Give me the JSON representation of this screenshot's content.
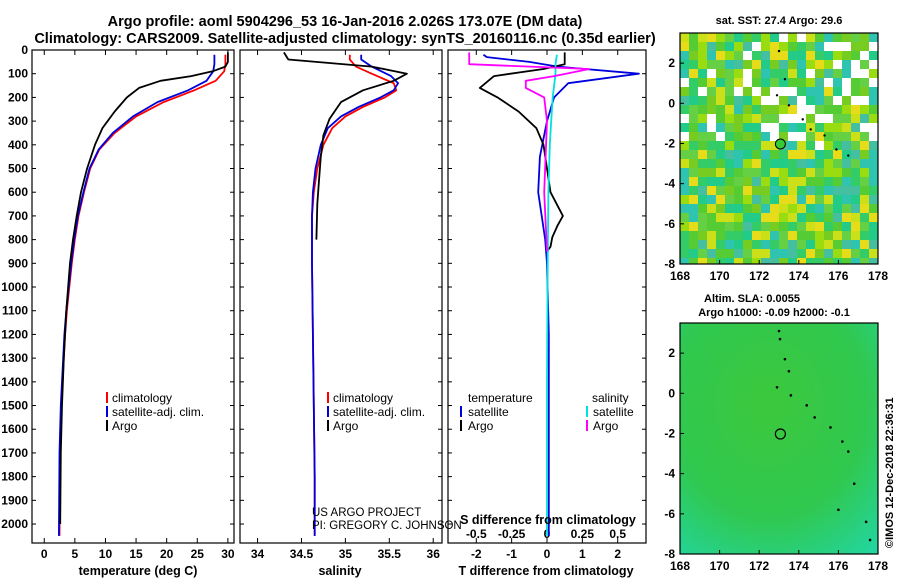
{
  "header": {
    "line1": "Argo profile: aoml 5904296_53 16-Jan-2016 2.026S 173.07E (DM data)",
    "line2": "Climatology: CARS2009. Satellite-adjusted climatology: synTS_20160116.nc (0.35d earlier)"
  },
  "colors": {
    "climatology": "#ff0000",
    "satellite": "#0000dd",
    "argo": "#000000",
    "sat_salinity": "#00e0e0",
    "argo_salinity": "#ff00ff"
  },
  "credit": {
    "line1": "US ARGO PROJECT",
    "line2": "PI: GREGORY C. JOHNSON"
  },
  "timestamp": "©IMOS 12-Dec-2018 22:36:31",
  "chart_data": [
    {
      "id": "temperature",
      "type": "line",
      "xlabel": "temperature (deg C)",
      "ylabel": "",
      "xlim": [
        -2,
        31
      ],
      "ylim": [
        2080,
        0
      ],
      "xticks": [
        0,
        5,
        10,
        15,
        20,
        25,
        30
      ],
      "yticks": [
        0,
        100,
        200,
        300,
        400,
        500,
        600,
        700,
        800,
        900,
        1000,
        1100,
        1200,
        1300,
        1400,
        1500,
        1600,
        1700,
        1800,
        1900,
        2000
      ],
      "legend": [
        "climatology",
        "satellite-adj. clim.",
        "Argo"
      ],
      "series": [
        {
          "name": "climatology",
          "color": "#ff0000",
          "x": [
            29.6,
            29.6,
            29.4,
            28.0,
            24.5,
            19.5,
            15.0,
            11.5,
            9.0,
            7.5,
            6.5,
            5.6,
            5.0,
            4.5,
            4.1,
            3.7,
            3.4,
            3.2,
            3.0,
            2.8,
            2.6,
            2.5
          ],
          "y": [
            20,
            60,
            90,
            130,
            170,
            220,
            280,
            350,
            420,
            500,
            600,
            700,
            800,
            900,
            1000,
            1100,
            1200,
            1300,
            1400,
            1500,
            1700,
            2050
          ]
        },
        {
          "name": "satellite-adj. clim.",
          "color": "#0000dd",
          "x": [
            27.8,
            27.8,
            27.6,
            26.5,
            23.5,
            18.5,
            14.5,
            11.2,
            8.9,
            7.4,
            6.4,
            5.5,
            4.9,
            4.4,
            4.0,
            3.6,
            3.3,
            3.1,
            2.9,
            2.7,
            2.5,
            2.4
          ],
          "y": [
            20,
            60,
            90,
            130,
            170,
            220,
            280,
            350,
            420,
            500,
            600,
            700,
            800,
            900,
            1000,
            1100,
            1200,
            1300,
            1400,
            1500,
            1700,
            2050
          ]
        },
        {
          "name": "Argo",
          "color": "#000000",
          "x": [
            30.0,
            30.0,
            29.6,
            27.5,
            24.0,
            19.0,
            15.5,
            13.5,
            11.5,
            9.5,
            8.3,
            7.0,
            6.0,
            5.3,
            4.7,
            4.2,
            3.6,
            3.2,
            2.9,
            2.7,
            2.6
          ],
          "y": [
            10,
            50,
            70,
            90,
            110,
            130,
            160,
            200,
            260,
            330,
            400,
            500,
            600,
            700,
            800,
            900,
            1100,
            1300,
            1500,
            1700,
            2000
          ]
        }
      ]
    },
    {
      "id": "salinity",
      "type": "line",
      "xlabel": "salinity",
      "ylabel": "",
      "xlim": [
        33.8,
        36.1
      ],
      "ylim": [
        2080,
        0
      ],
      "xticks": [
        34,
        34.5,
        35,
        35.5,
        36
      ],
      "legend": [
        "climatology",
        "satellite-adj. clim.",
        "Argo"
      ],
      "series": [
        {
          "name": "climatology",
          "color": "#ff0000",
          "x": [
            35.05,
            35.05,
            35.12,
            35.3,
            35.55,
            35.58,
            35.45,
            35.2,
            35.0,
            34.85,
            34.75,
            34.68,
            34.64,
            34.62,
            34.62,
            34.63,
            34.64,
            34.65,
            34.65
          ],
          "y": [
            20,
            40,
            70,
            100,
            140,
            170,
            200,
            240,
            280,
            330,
            400,
            500,
            600,
            700,
            900,
            1200,
            1500,
            1800,
            2050
          ]
        },
        {
          "name": "satellite-adj. clim.",
          "color": "#0000dd",
          "x": [
            35.18,
            35.18,
            35.3,
            35.52,
            35.6,
            35.55,
            35.4,
            35.15,
            34.95,
            34.8,
            34.72,
            34.66,
            34.63,
            34.62,
            34.62,
            34.63,
            34.64,
            34.65,
            34.65
          ],
          "y": [
            20,
            40,
            70,
            110,
            140,
            170,
            200,
            240,
            280,
            330,
            400,
            500,
            600,
            700,
            900,
            1200,
            1500,
            1800,
            2050
          ]
        },
        {
          "name": "Argo",
          "color": "#000000",
          "x": [
            34.3,
            34.35,
            35.3,
            35.7,
            35.55,
            35.2,
            34.95,
            34.82,
            34.75,
            34.72,
            34.7,
            34.68,
            34.67
          ],
          "y": [
            10,
            40,
            70,
            100,
            130,
            170,
            220,
            290,
            360,
            450,
            550,
            650,
            800
          ]
        }
      ]
    },
    {
      "id": "difference",
      "type": "line",
      "xlabel": "T difference from climatology",
      "xlabel_top": "S difference from climatology",
      "xlim": [
        -2.8,
        2.8
      ],
      "ylim": [
        2080,
        0
      ],
      "xticks": [
        -2,
        -1,
        0,
        1,
        2
      ],
      "xticks_s": [
        -0.5,
        -0.25,
        0,
        0.25,
        0.5
      ],
      "legend_left_title": "temperature",
      "legend_right_title": "salinity",
      "legend_left": [
        "satellite",
        "Argo"
      ],
      "legend_right": [
        "satellite",
        "Argo"
      ],
      "series": [
        {
          "name": "T satellite",
          "color": "#0000dd",
          "x": [
            -1.8,
            -1.7,
            -0.5,
            0.3,
            2.6,
            0.6,
            0.2,
            0.0,
            -0.2,
            -0.25,
            -0.15,
            -0.05,
            0.0,
            0.05,
            0.05,
            0.05,
            0.05
          ],
          "y": [
            20,
            30,
            50,
            70,
            100,
            140,
            200,
            300,
            450,
            600,
            700,
            800,
            900,
            1200,
            1500,
            1800,
            2050
          ]
        },
        {
          "name": "T Argo",
          "color": "#000000",
          "x": [
            0.5,
            0.5,
            -0.1,
            -1.5,
            -1.9,
            -1.4,
            -0.8,
            -0.3,
            -0.1,
            0.0,
            0.1,
            0.45,
            0.3,
            0.15,
            0.1,
            0.0
          ],
          "y": [
            10,
            60,
            80,
            110,
            160,
            200,
            260,
            330,
            400,
            500,
            600,
            700,
            740,
            790,
            830,
            850
          ]
        },
        {
          "name": "S satellite",
          "color": "#00e0e0",
          "x": [
            0.07,
            0.06,
            0.06,
            0.05,
            0.04,
            0.03,
            0.02,
            0.01,
            0.005,
            0.0,
            0.0
          ],
          "y": [
            20,
            60,
            100,
            150,
            200,
            300,
            400,
            600,
            900,
            1400,
            2050
          ]
        },
        {
          "name": "S Argo",
          "color": "#ff00ff",
          "x": [
            -0.55,
            -0.55,
            0.3,
            0.05,
            -0.15,
            -0.15,
            -0.02,
            0.0,
            -0.02,
            0.0
          ],
          "y": [
            10,
            60,
            80,
            110,
            130,
            160,
            200,
            300,
            600,
            850
          ]
        }
      ]
    },
    {
      "id": "sst-map",
      "type": "heatmap",
      "title": "sat. SST: 27.4 Argo: 29.6",
      "xlim": [
        168,
        178
      ],
      "ylim": [
        -8,
        3.5
      ],
      "xticks": [
        168,
        170,
        172,
        174,
        176,
        178
      ],
      "yticks": [
        2,
        0,
        -2,
        -4,
        -6,
        -8
      ],
      "marker": {
        "lon": 173.07,
        "lat": -2.026
      }
    },
    {
      "id": "sla-map",
      "type": "heatmap",
      "title_line1": "Altim. SLA: 0.0055",
      "title_line2": "Argo h1000: -0.09 h2000: -0.1",
      "xlim": [
        168,
        178
      ],
      "ylim": [
        -8,
        3.5
      ],
      "xticks": [
        168,
        170,
        172,
        174,
        176,
        178
      ],
      "yticks": [
        2,
        0,
        -2,
        -4,
        -6,
        -8
      ],
      "marker": {
        "lon": 173.07,
        "lat": -2.026
      }
    }
  ]
}
